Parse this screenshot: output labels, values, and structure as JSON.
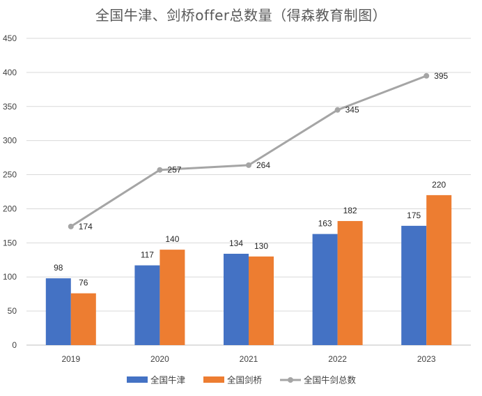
{
  "chart_data": {
    "type": "bar",
    "title": "全国牛津、剑桥offer总数量（得森教育制图）",
    "categories": [
      "2019",
      "2020",
      "2021",
      "2022",
      "2023"
    ],
    "series": [
      {
        "name": "全国牛津",
        "kind": "bar",
        "color": "#4472C4",
        "values": [
          98,
          117,
          134,
          163,
          175
        ]
      },
      {
        "name": "全国剑桥",
        "kind": "bar",
        "color": "#ED7D31",
        "values": [
          76,
          140,
          130,
          182,
          220
        ]
      },
      {
        "name": "全国牛剑总数",
        "kind": "line",
        "color": "#A5A5A5",
        "values": [
          174,
          257,
          264,
          345,
          395
        ]
      }
    ],
    "ylim": [
      0,
      450
    ],
    "ytick_step": 50,
    "grid": true,
    "legend_position": "bottom-center",
    "xlabel": "",
    "ylabel": ""
  }
}
